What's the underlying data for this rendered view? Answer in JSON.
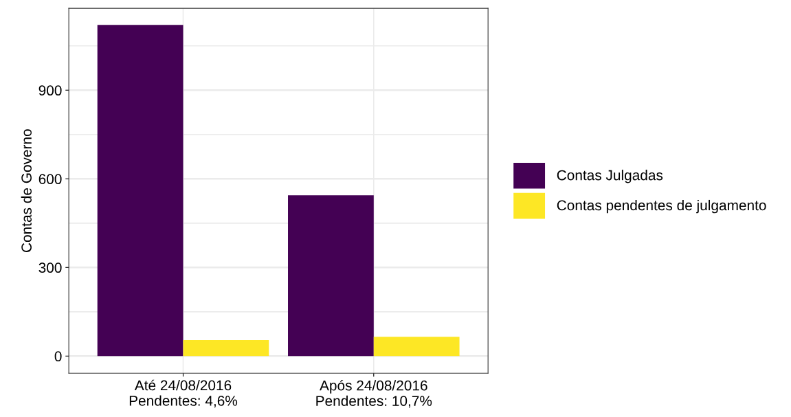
{
  "chart_data": {
    "type": "bar",
    "ylabel": "Contas de Governo",
    "categories": [
      "Até 24/08/2016\nPendentes: 4,6%",
      "Após 24/08/2016\nPendentes: 10,7%"
    ],
    "series": [
      {
        "name": "Contas Julgadas",
        "color": "#440154",
        "values": [
          1121,
          544
        ]
      },
      {
        "name": "Contas pendentes de julgamento",
        "color": "#fde725",
        "values": [
          54,
          65
        ]
      }
    ],
    "ylim": [
      -58,
      1177
    ],
    "yticks": [
      0,
      {
        "value": 150,
        "label": null
      },
      300,
      {
        "value": 450,
        "label": null
      },
      600,
      {
        "value": 750,
        "label": null
      },
      900,
      {
        "value": 1050,
        "label": null
      }
    ],
    "grid": true,
    "legend": "right"
  }
}
